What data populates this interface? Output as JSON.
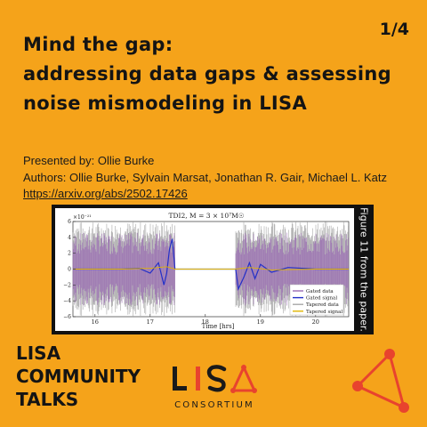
{
  "slide": {
    "page_indicator": "1/4",
    "title_lines": [
      "Mind the gap:",
      "addressing data gaps & assessing",
      "noise mismodeling in LISA"
    ],
    "presented_by": "Presented by: Ollie Burke",
    "authors": "Authors: Ollie Burke, Sylvain Marsat, Jonathan R. Gair, Michael L. Katz",
    "link": "https://arxiv.org/abs/2502.17426",
    "figure_caption": "Figure 11 from the paper.",
    "footer_lines": [
      "LISA",
      "COMMUNITY",
      "TALKS"
    ],
    "logo_word": "LISA",
    "logo_sub": "CONSORTIUM"
  },
  "colors": {
    "background": "#F5A31A",
    "text": "#141414",
    "logo_red": "#E8432E",
    "gated_data": "#9A6BB3",
    "gated_signal": "#2330C8",
    "tapered_data": "#A8A8A8",
    "tapered_signal": "#E0B400"
  },
  "chart_data": {
    "type": "line",
    "title": "TDI2, M = 3 × 10⁷M☉",
    "xlabel": "Time [hrs]",
    "ylabel": "",
    "y_multiplier": "×10⁻²¹",
    "xlim": [
      15.6,
      20.6
    ],
    "ylim": [
      -6,
      6
    ],
    "x_ticks": [
      16,
      17,
      18,
      19,
      20
    ],
    "y_ticks": [
      -6,
      -4,
      -2,
      0,
      2,
      4,
      6
    ],
    "gaps": [
      [
        17.45,
        18.55
      ]
    ],
    "legend": [
      "Gated data",
      "Gated signal",
      "Tapered data",
      "Tapered signal"
    ],
    "legend_position": "lower-right",
    "series": [
      {
        "name": "Gated signal",
        "x": [
          15.6,
          16.5,
          16.8,
          17.0,
          17.15,
          17.25,
          17.3,
          17.35,
          17.4,
          17.45,
          18.55,
          18.6,
          18.7,
          18.8,
          18.9,
          19.0,
          19.2,
          19.5,
          20.0,
          20.6
        ],
        "y": [
          0,
          0,
          0.1,
          -0.5,
          0.8,
          -2.0,
          -0.5,
          2.5,
          3.8,
          0,
          0,
          -2.5,
          -1.0,
          0.8,
          -1.2,
          0.6,
          -0.4,
          0.2,
          0,
          0
        ]
      },
      {
        "name": "Tapered signal",
        "x": [
          15.6,
          16.5,
          17.0,
          17.3,
          17.45,
          18.55,
          18.8,
          19.2,
          20.0,
          20.6
        ],
        "y": [
          0,
          0,
          0.1,
          0.3,
          0,
          0,
          0.2,
          -0.1,
          0,
          0
        ]
      }
    ]
  }
}
